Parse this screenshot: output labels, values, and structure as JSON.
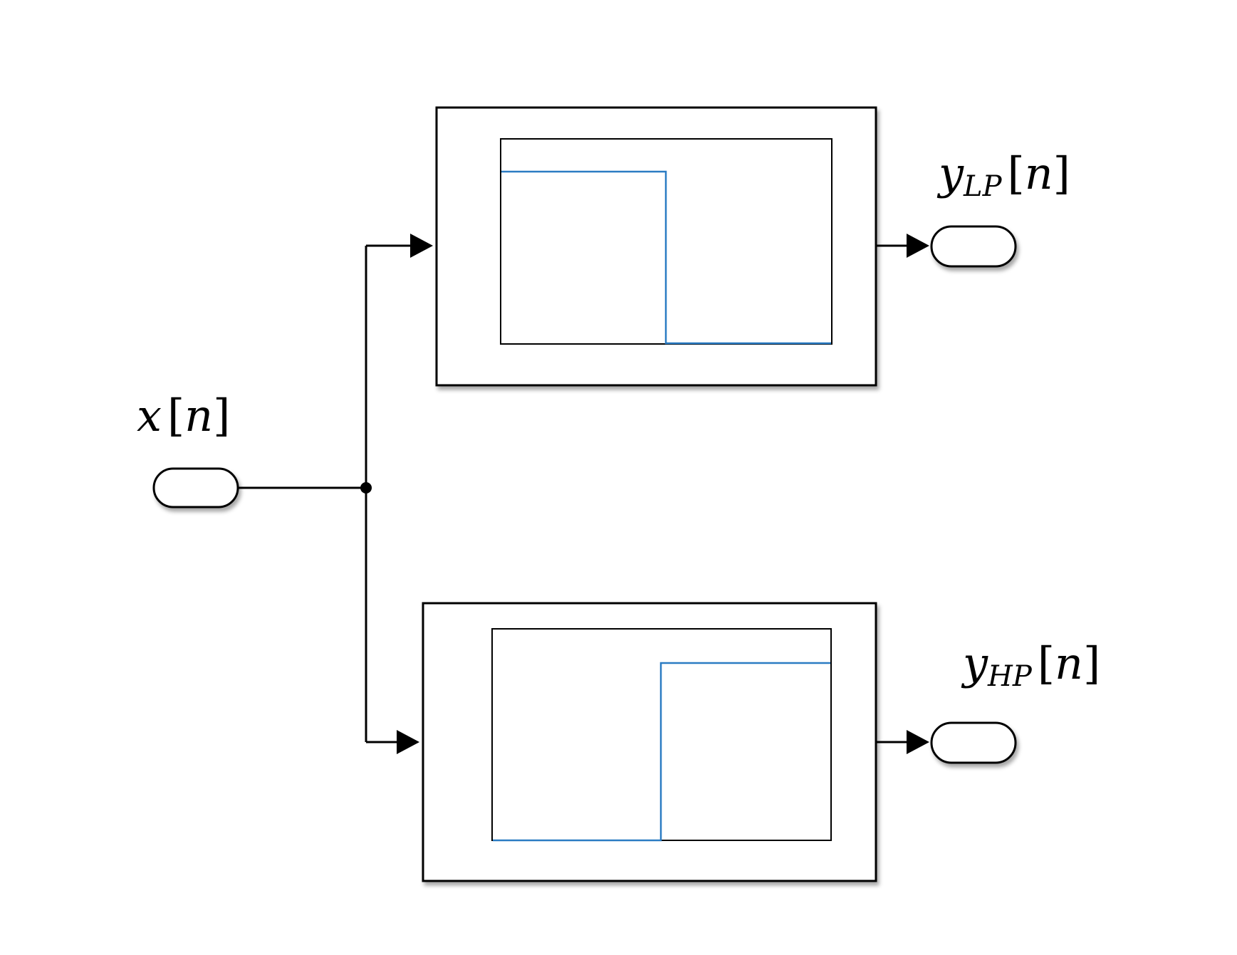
{
  "diagram": {
    "input": {
      "symbol": "x",
      "bracket_open": "[",
      "index": "n",
      "bracket_close": "]"
    },
    "outputs": [
      {
        "symbol": "y",
        "subscript": "LP",
        "bracket_open": "[",
        "index": "n",
        "bracket_close": "]"
      },
      {
        "symbol": "y",
        "subscript": "HP",
        "bracket_open": "[",
        "index": "n",
        "bracket_close": "]"
      }
    ],
    "filters": [
      {
        "name": "lowpass",
        "response": "low-pass",
        "trace_color": "#2b7cc3"
      },
      {
        "name": "highpass",
        "response": "high-pass",
        "trace_color": "#2b7cc3"
      }
    ],
    "colors": {
      "line": "#000000",
      "trace": "#2b7cc3",
      "background": "#ffffff"
    }
  }
}
